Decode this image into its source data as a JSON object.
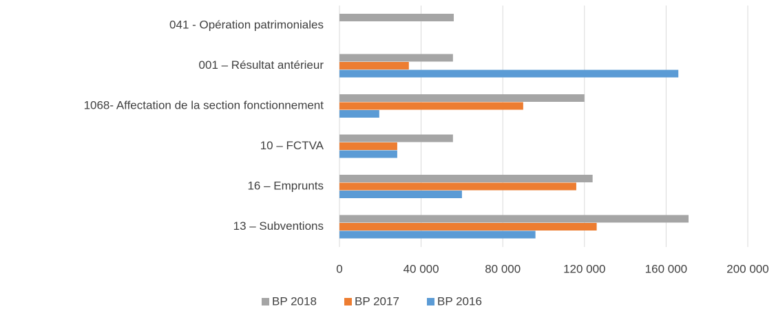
{
  "chart_data": {
    "type": "bar",
    "orientation": "horizontal",
    "categories": [
      "041 - Opération patrimoniales",
      "001 – Résultat antérieur",
      "1068- Affectation de la section fonctionnement",
      "10 – FCTVA",
      "16 – Emprunts",
      "13 – Subventions"
    ],
    "series": [
      {
        "name": "BP 2018",
        "color": "#a5a5a5",
        "values": [
          56000,
          55600,
          120000,
          55600,
          124000,
          171000
        ]
      },
      {
        "name": "BP 2017",
        "color": "#ed7d31",
        "values": [
          null,
          34000,
          90000,
          28300,
          116000,
          126000
        ]
      },
      {
        "name": "BP 2016",
        "color": "#5b9bd5",
        "values": [
          null,
          166000,
          19500,
          28300,
          60000,
          96000
        ]
      }
    ],
    "xlim": [
      0,
      200000
    ],
    "xticks": [
      0,
      {
        "value": 40000,
        "label": "40 000"
      },
      {
        "value": 80000,
        "label": "80 000"
      },
      {
        "value": 120000,
        "label": "120 000"
      },
      {
        "value": 160000,
        "label": "160 000"
      },
      {
        "value": 200000,
        "label": "200 000"
      }
    ],
    "grid": true,
    "legend": "bottom"
  }
}
